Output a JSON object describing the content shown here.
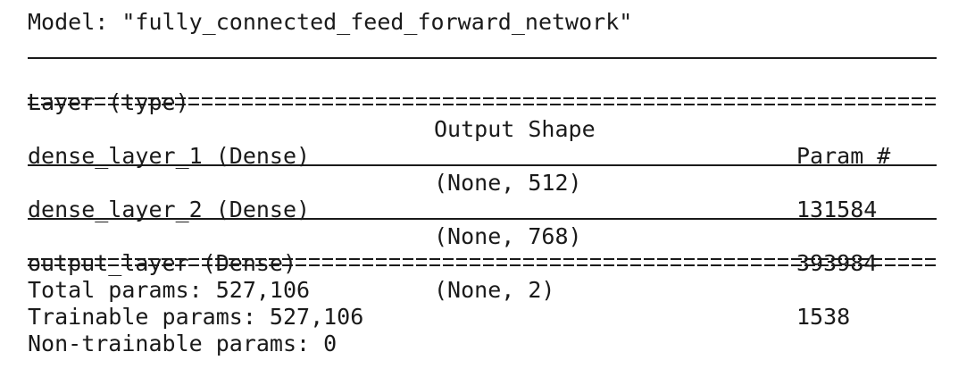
{
  "model_title": "Model: \"fully_connected_feed_forward_network\"",
  "header": {
    "layer": "Layer (type)",
    "output_shape": "Output Shape",
    "params": "Param #"
  },
  "rows": [
    {
      "layer": "dense_layer_1 (Dense)",
      "output_shape": "(None, 512)",
      "params": "131584"
    },
    {
      "layer": "dense_layer_2 (Dense)",
      "output_shape": "(None, 768)",
      "params": "393984"
    },
    {
      "layer": "output_layer (Dense)",
      "output_shape": "(None, 2)",
      "params": "1538"
    }
  ],
  "totals": {
    "total": "Total params: 527,106",
    "trainable": "Trainable params: 527,106",
    "non_trainable": "Non-trainable params: 0"
  }
}
